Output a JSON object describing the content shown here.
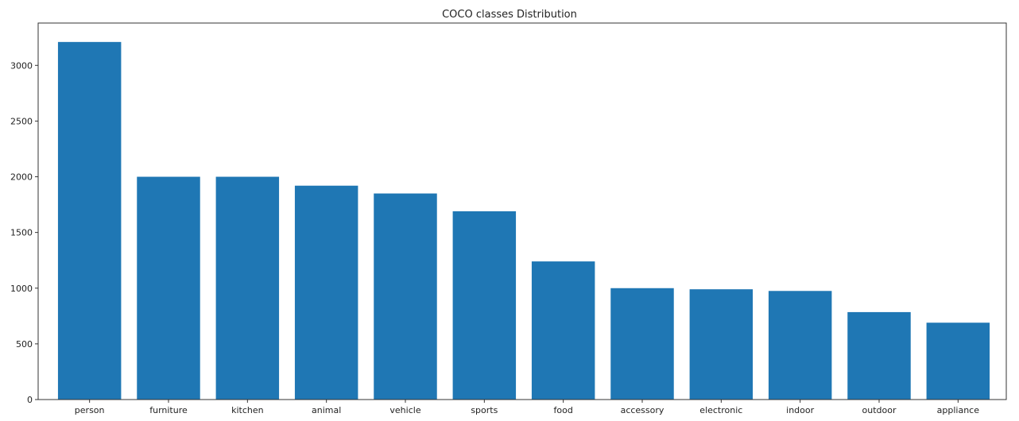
{
  "chart_data": {
    "type": "bar",
    "title": "COCO classes Distribution",
    "xlabel": "",
    "ylabel": "",
    "categories": [
      "person",
      "furniture",
      "kitchen",
      "animal",
      "vehicle",
      "sports",
      "food",
      "accessory",
      "electronic",
      "indoor",
      "outdoor",
      "appliance"
    ],
    "values": [
      3210,
      2000,
      2000,
      1920,
      1850,
      1690,
      1240,
      1000,
      990,
      975,
      785,
      690
    ],
    "ylim": [
      0,
      3380
    ],
    "yticks": [
      0,
      500,
      1000,
      1500,
      2000,
      2500,
      3000
    ],
    "bar_color": "#1f77b4",
    "grid": false,
    "legend": "none"
  }
}
